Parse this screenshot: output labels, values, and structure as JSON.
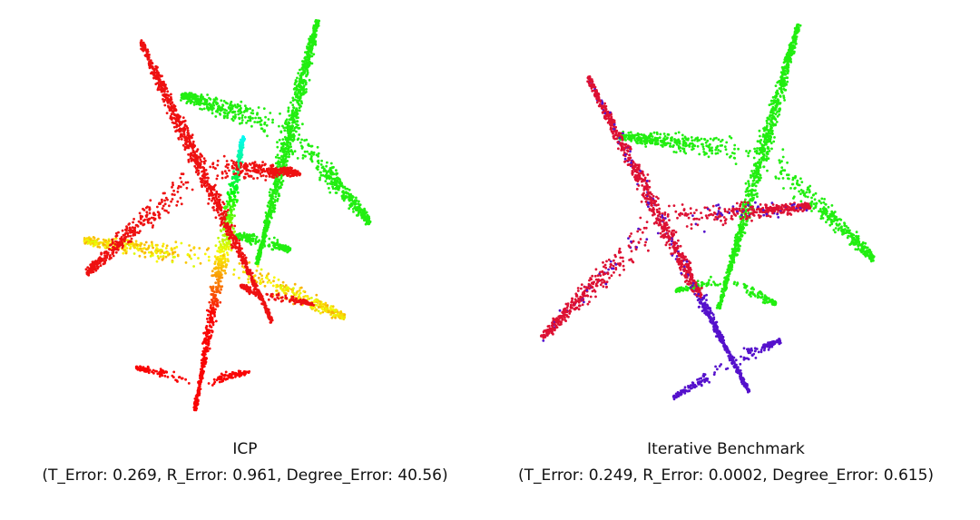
{
  "panels": [
    {
      "title": "ICP",
      "metrics": "(T_Error: 0.269, R_Error: 0.961, Degree_Error: 40.56)"
    },
    {
      "title": "Iterative Benchmark",
      "metrics": "(T_Error: 0.249, R_Error: 0.0002, Degree_Error: 0.615)"
    }
  ]
}
